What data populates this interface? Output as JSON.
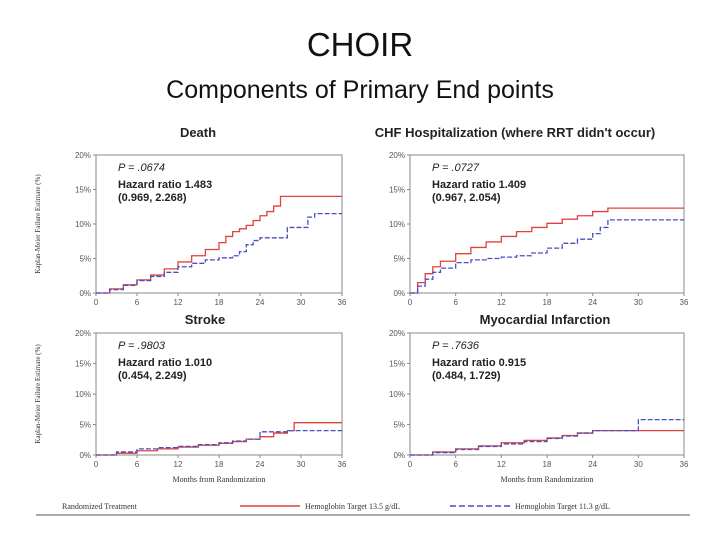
{
  "slide": {
    "title": "CHOIR",
    "subtitle": "Components of Primary End points"
  },
  "chart_data": [
    {
      "type": "line",
      "title": "Death",
      "xlabel": "",
      "ylabel": "Kaplan-Meier Failure Estimate (%)",
      "xlim": [
        0,
        36
      ],
      "ylim": [
        0,
        20
      ],
      "xticks": [
        "0",
        "6",
        "12",
        "18",
        "24",
        "30",
        "36"
      ],
      "yticks": [
        "0%",
        "5%",
        "10%",
        "15%",
        "20%"
      ],
      "p_value": "P = .0674",
      "hazard_ratio": "Hazard ratio  1.483",
      "ci": "(0.969, 2.268)",
      "series": [
        {
          "name": "Hemoglobin Target 13.5 g/dL",
          "color": "#e0423f",
          "x": [
            0,
            2,
            4,
            6,
            8,
            10,
            12,
            14,
            16,
            18,
            19,
            20,
            21,
            22,
            23,
            24,
            25,
            26,
            27,
            28,
            30,
            32,
            34,
            36
          ],
          "y": [
            0,
            0.6,
            1.2,
            1.9,
            2.6,
            3.5,
            4.5,
            5.4,
            6.3,
            7.3,
            8.2,
            8.9,
            9.3,
            9.8,
            10.5,
            11.2,
            11.8,
            12.6,
            14,
            14,
            14,
            14,
            14,
            14
          ]
        },
        {
          "name": "Hemoglobin Target 11.3 g/dL",
          "color": "#4a4fc0",
          "x": [
            0,
            2,
            4,
            6,
            8,
            10,
            12,
            14,
            16,
            18,
            20,
            21,
            22,
            23,
            24,
            25,
            26,
            27,
            28,
            30,
            31,
            32,
            33,
            34,
            36
          ],
          "y": [
            0,
            0.5,
            1.1,
            1.8,
            2.4,
            3,
            3.8,
            4.3,
            4.8,
            5.1,
            5.4,
            6,
            7,
            7.6,
            8,
            8,
            8,
            8,
            9.5,
            9.5,
            11,
            11.5,
            11.5,
            11.5,
            11.5
          ]
        }
      ]
    },
    {
      "type": "line",
      "title": "CHF Hospitalization (where RRT didn't occur)",
      "xlabel": "",
      "ylabel": "",
      "xlim": [
        0,
        36
      ],
      "ylim": [
        0,
        20
      ],
      "xticks": [
        "0",
        "6",
        "12",
        "18",
        "24",
        "30",
        "36"
      ],
      "yticks": [
        "0%",
        "5%",
        "10%",
        "15%",
        "20%"
      ],
      "p_value": "P = .0727",
      "hazard_ratio": "Hazard ratio  1.409",
      "ci": "(0.967, 2.054)",
      "series": [
        {
          "name": "Hemoglobin Target 13.5 g/dL",
          "color": "#e0423f",
          "x": [
            0,
            1,
            2,
            3,
            4,
            6,
            8,
            10,
            12,
            14,
            16,
            18,
            20,
            22,
            24,
            26,
            28,
            30,
            32,
            34,
            36
          ],
          "y": [
            0,
            1.5,
            2.8,
            3.8,
            4.6,
            5.7,
            6.6,
            7.4,
            8.2,
            8.9,
            9.5,
            10.1,
            10.7,
            11.2,
            11.8,
            12.3,
            12.3,
            12.3,
            12.3,
            12.3,
            12.3
          ]
        },
        {
          "name": "Hemoglobin Target 11.3 g/dL",
          "color": "#4a4fc0",
          "x": [
            0,
            1,
            2,
            3,
            4,
            6,
            8,
            10,
            12,
            14,
            16,
            18,
            20,
            22,
            24,
            25,
            26,
            27,
            28,
            30,
            32,
            34,
            36
          ],
          "y": [
            0,
            1,
            2,
            3,
            3.6,
            4.4,
            4.8,
            5,
            5.2,
            5.4,
            5.8,
            6.5,
            7.2,
            7.8,
            8.6,
            9.5,
            10.6,
            10.6,
            10.6,
            10.6,
            10.6,
            10.6,
            10.6
          ]
        }
      ]
    },
    {
      "type": "line",
      "title": "Stroke",
      "xlabel": "Months from Randomization",
      "ylabel": "Kaplan-Meier Failure Estimate (%)",
      "xlim": [
        0,
        36
      ],
      "ylim": [
        0,
        20
      ],
      "xticks": [
        "0",
        "6",
        "12",
        "18",
        "24",
        "30",
        "36"
      ],
      "yticks": [
        "0%",
        "5%",
        "10%",
        "15%",
        "20%"
      ],
      "p_value": "P = .9803",
      "hazard_ratio": "Hazard ratio  1.010",
      "ci": "(0.454, 2.249)",
      "series": [
        {
          "name": "Hemoglobin Target 13.5 g/dL",
          "color": "#e0423f",
          "x": [
            0,
            3,
            6,
            9,
            12,
            15,
            18,
            20,
            22,
            24,
            26,
            28,
            29,
            30,
            33,
            36
          ],
          "y": [
            0,
            0.3,
            0.7,
            1,
            1.3,
            1.6,
            1.9,
            2.2,
            2.6,
            3,
            3.6,
            4,
            5.3,
            5.3,
            5.3,
            5.3
          ]
        },
        {
          "name": "Hemoglobin Target 11.3 g/dL",
          "color": "#4a4fc0",
          "x": [
            0,
            3,
            6,
            9,
            12,
            15,
            18,
            20,
            22,
            24,
            26,
            28,
            30,
            33,
            36
          ],
          "y": [
            0,
            0.5,
            1,
            1.2,
            1.4,
            1.7,
            2,
            2.3,
            2.6,
            3.8,
            3.8,
            4,
            4,
            4,
            4
          ]
        }
      ]
    },
    {
      "type": "line",
      "title": "Myocardial Infarction",
      "xlabel": "Months from Randomization",
      "ylabel": "",
      "xlim": [
        0,
        36
      ],
      "ylim": [
        0,
        20
      ],
      "xticks": [
        "0",
        "6",
        "12",
        "18",
        "24",
        "30",
        "36"
      ],
      "yticks": [
        "0%",
        "5%",
        "10%",
        "15%",
        "20%"
      ],
      "p_value": "P = .7636",
      "hazard_ratio": "Hazard ratio  0.915",
      "ci": "(0.484, 1.729)",
      "series": [
        {
          "name": "Hemoglobin Target 13.5 g/dL",
          "color": "#e0423f",
          "x": [
            0,
            3,
            6,
            9,
            12,
            15,
            18,
            20,
            22,
            24,
            26,
            28,
            30,
            33,
            36
          ],
          "y": [
            0,
            0.5,
            1,
            1.5,
            2,
            2.4,
            2.8,
            3.2,
            3.6,
            4,
            4,
            4,
            4,
            4,
            4
          ]
        },
        {
          "name": "Hemoglobin Target 11.3 g/dL",
          "color": "#4a4fc0",
          "x": [
            0,
            3,
            6,
            9,
            12,
            15,
            18,
            20,
            22,
            24,
            26,
            28,
            29,
            30,
            33,
            36
          ],
          "y": [
            0,
            0.4,
            0.9,
            1.4,
            1.8,
            2.2,
            2.7,
            3.1,
            3.6,
            4,
            4,
            4,
            4,
            5.8,
            5.8,
            5.8
          ]
        }
      ]
    }
  ],
  "legend": {
    "heading": "Randomized Treatment",
    "items": [
      {
        "label": "Hemoglobin Target 13.5 g/dL",
        "color": "#e0423f",
        "dash": "solid"
      },
      {
        "label": "Hemoglobin Target 11.3 g/dL",
        "color": "#4a4fc0",
        "dash": "dashed"
      }
    ]
  }
}
